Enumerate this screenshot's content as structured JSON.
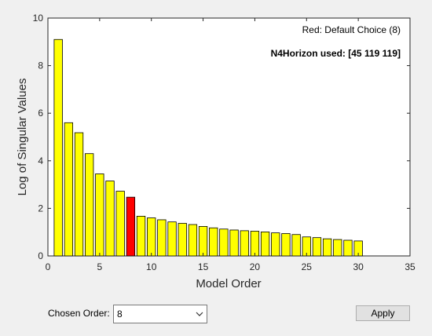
{
  "chart_data": {
    "type": "bar",
    "xlabel": "Model Order",
    "ylabel": "Log of Singular Values",
    "xlim": [
      0,
      35
    ],
    "ylim": [
      0,
      10
    ],
    "xticks": [
      "0",
      "5",
      "10",
      "15",
      "20",
      "25",
      "30",
      "35"
    ],
    "yticks": [
      "0",
      "2",
      "4",
      "6",
      "8",
      "10"
    ],
    "x": [
      1,
      2,
      3,
      4,
      5,
      6,
      7,
      8,
      9,
      10,
      11,
      12,
      13,
      14,
      15,
      16,
      17,
      18,
      19,
      20,
      21,
      22,
      23,
      24,
      25,
      26,
      27,
      28,
      29,
      30
    ],
    "values": [
      9.1,
      5.6,
      5.18,
      4.3,
      3.45,
      3.15,
      2.72,
      2.47,
      1.67,
      1.6,
      1.52,
      1.43,
      1.37,
      1.32,
      1.24,
      1.18,
      1.13,
      1.09,
      1.06,
      1.04,
      1.01,
      0.97,
      0.94,
      0.9,
      0.8,
      0.77,
      0.72,
      0.69,
      0.66,
      0.63
    ],
    "highlight_index": 7,
    "bar_color": "#ffff00",
    "highlight_color": "#ff0000",
    "grid": false,
    "annotations": {
      "default_choice": "Red: Default Choice (8)",
      "horizon": "N4Horizon used: [45 119 119]"
    }
  },
  "controls": {
    "chosen_order_label": "Chosen Order:",
    "chosen_order_value": "8",
    "apply_label": "Apply"
  },
  "icons": {
    "dropdown": "chevron-down-icon"
  }
}
